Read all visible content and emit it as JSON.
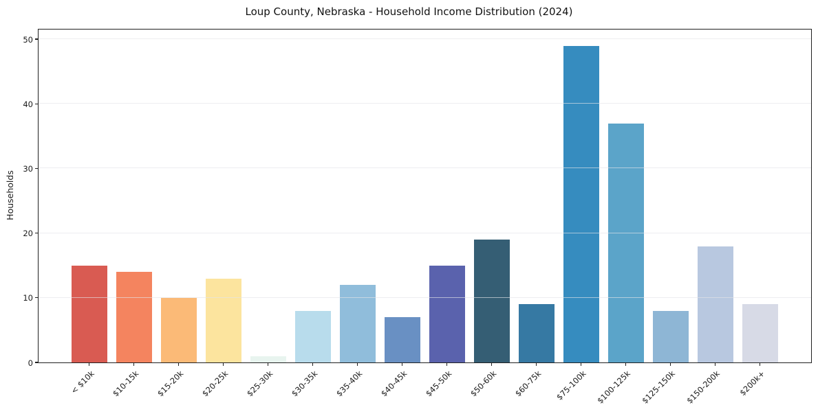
{
  "chart_data": {
    "type": "bar",
    "title": "Loup County, Nebraska - Household Income Distribution (2024)",
    "xlabel": "",
    "ylabel": "Households",
    "categories": [
      "< $10k",
      "$10-15k",
      "$15-20k",
      "$20-25k",
      "$25-30k",
      "$30-35k",
      "$35-40k",
      "$40-45k",
      "$45-50k",
      "$50-60k",
      "$60-75k",
      "$75-100k",
      "$100-125k",
      "$125-150k",
      "$150-200k",
      "$200k+"
    ],
    "values": [
      15,
      14,
      10,
      13,
      1,
      8,
      12,
      7,
      15,
      19,
      9,
      49,
      37,
      8,
      18,
      9
    ],
    "bar_colors": [
      "#d95b52",
      "#f4845f",
      "#fbba77",
      "#fce49e",
      "#e8f4ef",
      "#b8dcec",
      "#90bddb",
      "#6990c3",
      "#5a62ad",
      "#355e74",
      "#3679a3",
      "#368cbf",
      "#5ba4c9",
      "#8eb6d5",
      "#b8c8e0",
      "#d7dae6"
    ],
    "ylim": [
      0,
      51.5
    ],
    "yticks": [
      0,
      10,
      20,
      30,
      40,
      50
    ],
    "grid": "horizontal",
    "grid_color": "rgba(228,228,232,0.65)",
    "legend": "none",
    "spine_color": "#1f1f1f",
    "background": "#ffffff"
  }
}
